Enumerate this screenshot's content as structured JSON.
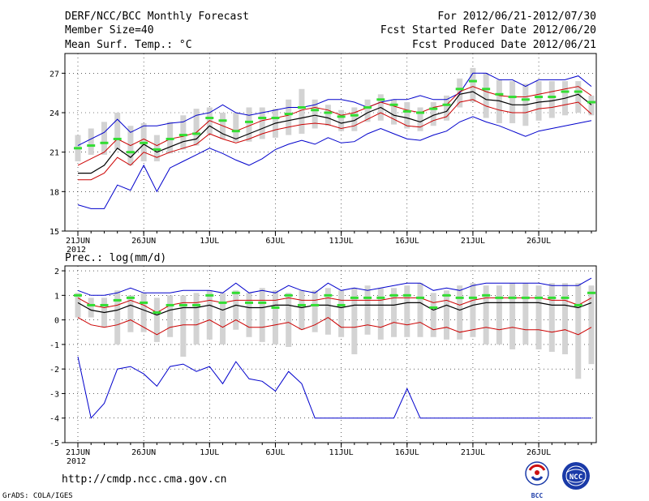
{
  "header": {
    "title": "DERF/NCC/BCC Monthly Forecast",
    "member_size": "Member Size=40",
    "variable": "Mean Surf. Temp.: °C",
    "period": "For 2012/06/21-2012/07/30",
    "started": "Fcst Started Refer Date 2012/06/20",
    "produced": "Fcst Produced Date 2012/06/21"
  },
  "footer": {
    "url": "http://cmdp.ncc.cma.gov.cn",
    "grads": "GrADS: COLA/IGES",
    "logo_bcc": "BCC",
    "logo_ncc": "NCC"
  },
  "colors": {
    "envelope": "#0000cc",
    "spread": "#cc0000",
    "mean": "#000000",
    "median": "#33dd33",
    "box": "#d3d3d3"
  },
  "chart_data": [
    {
      "type": "line",
      "title": "Mean Surf. Temp.: °C",
      "x_labels": [
        "21JUN",
        "26JUN",
        "1JUL",
        "6JUL",
        "11JUL",
        "16JUL",
        "21JUL",
        "26JUL"
      ],
      "x_label_days": [
        0,
        5,
        10,
        15,
        20,
        25,
        30,
        35
      ],
      "year_label": "2012",
      "ylim": [
        15,
        28.5
      ],
      "yticks": [
        15,
        18,
        21,
        24,
        27
      ],
      "grid": true,
      "days": 40,
      "series": [
        {
          "name": "max",
          "values": [
            17.0,
            16.7,
            16.7,
            18.5,
            18.1,
            20.0,
            18.0,
            19.8,
            20.3,
            20.8,
            21.3,
            20.9,
            20.4,
            20.0,
            20.5,
            21.2,
            21.6,
            21.9,
            21.6,
            22.1,
            21.7,
            21.8,
            22.4,
            22.8,
            22.4,
            22.0,
            21.9,
            22.3,
            22.6,
            23.3,
            23.7,
            23.3,
            23.0,
            22.6,
            22.2,
            22.6,
            22.8,
            23.0,
            23.2,
            23.4
          ]
        },
        {
          "name": "upper",
          "values": [
            21.5,
            22.0,
            22.5,
            23.5,
            22.5,
            23.0,
            23.0,
            23.2,
            23.3,
            23.8,
            24.0,
            24.6,
            24.0,
            23.8,
            24.0,
            24.2,
            24.4,
            24.4,
            24.6,
            25.0,
            25.0,
            24.8,
            24.4,
            24.8,
            25.0,
            25.0,
            25.3,
            25.0,
            25.0,
            25.5,
            27.0,
            27.0,
            26.5,
            26.5,
            26.0,
            26.5,
            26.5,
            26.5,
            26.8,
            26.0
          ]
        },
        {
          "name": "spread_hi",
          "values": [
            20.0,
            20.5,
            21.0,
            22.0,
            21.5,
            22.0,
            21.5,
            22.0,
            22.2,
            22.5,
            23.4,
            23.0,
            22.6,
            23.0,
            23.4,
            23.6,
            23.8,
            24.2,
            24.4,
            24.2,
            23.8,
            24.0,
            24.4,
            24.8,
            24.5,
            24.2,
            24.0,
            24.4,
            24.6,
            25.6,
            26.0,
            25.6,
            25.3,
            25.2,
            25.2,
            25.4,
            25.6,
            25.8,
            26.0,
            25.3
          ]
        },
        {
          "name": "mean",
          "values": [
            19.4,
            19.4,
            20.0,
            21.3,
            20.6,
            21.6,
            21.0,
            21.4,
            21.8,
            22.0,
            23.0,
            22.4,
            22.0,
            22.4,
            22.8,
            23.2,
            23.4,
            23.6,
            23.8,
            23.6,
            23.2,
            23.4,
            24.0,
            24.4,
            23.8,
            23.6,
            23.3,
            23.8,
            24.1,
            25.4,
            25.6,
            25.0,
            24.9,
            24.6,
            24.6,
            24.8,
            24.9,
            25.1,
            25.4,
            24.6
          ]
        },
        {
          "name": "spread_lo",
          "values": [
            18.9,
            18.9,
            19.4,
            20.6,
            20.0,
            21.0,
            20.6,
            21.0,
            21.3,
            21.6,
            22.4,
            22.0,
            21.7,
            22.0,
            22.4,
            22.7,
            22.9,
            23.1,
            23.2,
            23.1,
            22.8,
            23.0,
            23.5,
            24.0,
            23.5,
            23.0,
            22.9,
            23.4,
            23.7,
            24.8,
            25.0,
            24.5,
            24.2,
            24.0,
            24.0,
            24.3,
            24.4,
            24.6,
            24.8,
            23.9
          ]
        },
        {
          "name": "median",
          "values": [
            21.3,
            21.5,
            21.7,
            22.0,
            21.0,
            21.7,
            21.2,
            22.0,
            22.3,
            22.4,
            23.6,
            23.4,
            22.6,
            23.3,
            23.6,
            23.6,
            23.9,
            24.4,
            24.2,
            24.0,
            23.7,
            23.8,
            24.4,
            25.0,
            24.6,
            24.1,
            24.0,
            24.3,
            24.6,
            25.8,
            26.4,
            25.8,
            25.4,
            25.2,
            25.0,
            25.2,
            25.2,
            25.6,
            25.6,
            24.8
          ]
        }
      ],
      "boxes_low": [
        20.3,
        20.8,
        20.8,
        21.2,
        20.0,
        20.3,
        20.3,
        20.9,
        21.2,
        21.5,
        22.4,
        22.0,
        21.8,
        21.8,
        22.0,
        22.1,
        22.3,
        22.4,
        22.8,
        23.0,
        22.6,
        22.6,
        23.3,
        23.4,
        23.1,
        22.8,
        22.6,
        23.0,
        23.4,
        24.4,
        24.8,
        23.6,
        23.2,
        23.2,
        23.0,
        23.4,
        23.6,
        23.8,
        24.0,
        23.8
      ],
      "boxes_high": [
        22.3,
        22.8,
        23.3,
        24.0,
        23.0,
        23.2,
        22.3,
        23.3,
        23.8,
        24.3,
        24.4,
        24.0,
        24.0,
        24.4,
        24.4,
        24.3,
        25.0,
        25.8,
        25.0,
        24.6,
        24.2,
        24.4,
        25.0,
        25.4,
        25.0,
        24.8,
        24.4,
        24.8,
        25.3,
        26.6,
        27.4,
        27.0,
        26.5,
        26.4,
        26.2,
        26.4,
        26.4,
        26.4,
        26.4,
        25.3
      ]
    },
    {
      "type": "line",
      "title": "Prec.: log(mm/d)",
      "x_labels": [
        "21JUN",
        "26JUN",
        "1JUL",
        "6JUL",
        "11JUL",
        "16JUL",
        "21JUL",
        "26JUL"
      ],
      "x_label_days": [
        0,
        5,
        10,
        15,
        20,
        25,
        30,
        35
      ],
      "year_label": "2012",
      "ylim": [
        -5,
        2.2
      ],
      "yticks": [
        -5,
        -4,
        -3,
        -2,
        -1,
        0,
        1,
        2
      ],
      "grid": true,
      "days": 40,
      "series": [
        {
          "name": "max",
          "values": [
            -1.5,
            -4.0,
            -3.4,
            -2.0,
            -1.9,
            -2.2,
            -2.7,
            -1.9,
            -1.8,
            -2.1,
            -1.9,
            -2.6,
            -1.7,
            -2.4,
            -2.5,
            -2.9,
            -2.1,
            -2.6,
            -4.0,
            -4.0,
            -4.0,
            -4.0,
            -4.0,
            -4.0,
            -4.0,
            -2.8,
            -4.0,
            -4.0,
            -4.0,
            -4.0,
            -4.0,
            -4.0,
            -4.0,
            -4.0,
            -4.0,
            -4.0,
            -4.0,
            -4.0,
            -4.0,
            -4.0
          ]
        },
        {
          "name": "upper",
          "values": [
            1.2,
            1.0,
            1.0,
            1.1,
            1.3,
            1.1,
            1.1,
            1.1,
            1.2,
            1.2,
            1.2,
            1.1,
            1.5,
            1.1,
            1.2,
            1.1,
            1.4,
            1.2,
            1.1,
            1.5,
            1.2,
            1.3,
            1.2,
            1.3,
            1.4,
            1.5,
            1.5,
            1.2,
            1.3,
            1.2,
            1.4,
            1.5,
            1.5,
            1.5,
            1.5,
            1.5,
            1.4,
            1.4,
            1.4,
            1.7
          ]
        },
        {
          "name": "spread_hi",
          "values": [
            0.9,
            0.6,
            0.5,
            0.6,
            0.8,
            0.6,
            0.3,
            0.6,
            0.7,
            0.7,
            0.8,
            0.7,
            0.8,
            0.8,
            0.8,
            0.8,
            0.9,
            0.8,
            0.8,
            0.9,
            0.8,
            0.8,
            0.8,
            0.8,
            0.9,
            0.9,
            0.9,
            0.7,
            0.8,
            0.6,
            0.8,
            0.9,
            0.9,
            0.9,
            0.9,
            0.9,
            0.8,
            0.8,
            0.6,
            0.9
          ]
        },
        {
          "name": "mean",
          "values": [
            0.7,
            0.4,
            0.3,
            0.4,
            0.6,
            0.4,
            0.2,
            0.4,
            0.5,
            0.5,
            0.6,
            0.4,
            0.6,
            0.5,
            0.5,
            0.6,
            0.6,
            0.5,
            0.6,
            0.6,
            0.5,
            0.6,
            0.6,
            0.6,
            0.6,
            0.7,
            0.7,
            0.4,
            0.6,
            0.4,
            0.6,
            0.7,
            0.7,
            0.7,
            0.7,
            0.7,
            0.6,
            0.6,
            0.5,
            0.7
          ]
        },
        {
          "name": "spread_lo",
          "values": [
            0.1,
            -0.2,
            -0.3,
            -0.2,
            0.0,
            -0.3,
            -0.6,
            -0.3,
            -0.2,
            -0.2,
            0.0,
            -0.3,
            0.0,
            -0.3,
            -0.3,
            -0.2,
            -0.1,
            -0.4,
            -0.2,
            0.1,
            -0.3,
            -0.3,
            -0.2,
            -0.3,
            -0.1,
            -0.2,
            -0.1,
            -0.4,
            -0.3,
            -0.5,
            -0.4,
            -0.3,
            -0.4,
            -0.3,
            -0.4,
            -0.4,
            -0.5,
            -0.4,
            -0.6,
            -0.3
          ]
        },
        {
          "name": "median",
          "values": [
            1.0,
            0.6,
            0.6,
            0.8,
            0.9,
            0.7,
            0.3,
            0.6,
            0.6,
            0.6,
            1.0,
            0.7,
            1.1,
            0.7,
            0.7,
            0.5,
            1.0,
            0.6,
            0.6,
            1.0,
            0.6,
            0.9,
            0.9,
            0.9,
            1.0,
            1.0,
            0.9,
            0.5,
            1.0,
            0.9,
            0.9,
            1.0,
            0.9,
            0.9,
            0.9,
            0.9,
            0.9,
            0.9,
            0.6,
            1.1
          ]
        }
      ],
      "boxes_low": [
        0.1,
        0.1,
        -0.3,
        -1.0,
        -0.5,
        -0.5,
        -0.9,
        -0.7,
        -1.5,
        -1.0,
        -0.8,
        -1.0,
        -0.4,
        -0.7,
        -0.9,
        -1.0,
        -1.1,
        -0.4,
        -0.5,
        -0.6,
        -0.7,
        -1.4,
        -0.6,
        -0.8,
        -0.7,
        -0.7,
        -0.7,
        -0.7,
        -0.8,
        -0.8,
        -0.7,
        -1.0,
        -1.0,
        -1.2,
        -1.0,
        -1.2,
        -1.3,
        -1.4,
        -2.4,
        -1.8
      ],
      "boxes_high": [
        1.1,
        0.9,
        0.9,
        1.2,
        1.0,
        1.1,
        0.9,
        1.0,
        1.0,
        1.1,
        1.2,
        1.1,
        1.2,
        1.1,
        1.3,
        1.2,
        1.1,
        1.2,
        1.2,
        1.3,
        1.2,
        1.3,
        1.4,
        1.3,
        1.3,
        1.4,
        1.5,
        1.1,
        1.2,
        1.4,
        1.5,
        1.4,
        1.4,
        1.5,
        1.5,
        1.4,
        1.5,
        1.5,
        1.5,
        1.4
      ]
    }
  ]
}
